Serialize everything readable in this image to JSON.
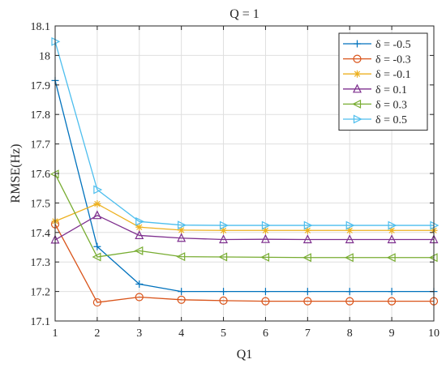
{
  "chart_data": {
    "type": "line",
    "title": "Q = 1",
    "xlabel": "Q1",
    "ylabel": "RMSE(Hz)",
    "x": [
      1,
      2,
      3,
      4,
      5,
      6,
      7,
      8,
      9,
      10
    ],
    "xlim": [
      1,
      10
    ],
    "ylim": [
      17.1,
      18.1
    ],
    "xticks": [
      "1",
      "2",
      "3",
      "4",
      "5",
      "6",
      "7",
      "8",
      "9",
      "10"
    ],
    "yticks": [
      "17.1",
      "17.2",
      "17.3",
      "17.4",
      "17.5",
      "17.6",
      "17.7",
      "17.8",
      "17.9",
      "18",
      "18.1"
    ],
    "grid": true,
    "legend_position": "top-right",
    "series": [
      {
        "name": "δ = -0.5",
        "marker": "plus",
        "color": "#0072BD",
        "values": [
          17.915,
          17.352,
          17.225,
          17.2,
          17.2,
          17.2,
          17.2,
          17.2,
          17.2,
          17.2
        ]
      },
      {
        "name": "δ = -0.3",
        "marker": "circle",
        "color": "#D95319",
        "values": [
          17.428,
          17.163,
          17.181,
          17.172,
          17.169,
          17.167,
          17.167,
          17.167,
          17.167,
          17.167
        ]
      },
      {
        "name": "δ = -0.1",
        "marker": "asterisk",
        "color": "#EDB120",
        "values": [
          17.438,
          17.497,
          17.418,
          17.408,
          17.407,
          17.407,
          17.407,
          17.407,
          17.407,
          17.407
        ]
      },
      {
        "name": "δ = 0.1",
        "marker": "triangle-up",
        "color": "#7E2F8E",
        "values": [
          17.375,
          17.458,
          17.39,
          17.381,
          17.376,
          17.377,
          17.376,
          17.376,
          17.376,
          17.376
        ]
      },
      {
        "name": "δ = 0.3",
        "marker": "triangle-left",
        "color": "#77AC30",
        "values": [
          17.598,
          17.317,
          17.338,
          17.318,
          17.317,
          17.316,
          17.315,
          17.315,
          17.315,
          17.315
        ]
      },
      {
        "name": "δ = 0.5",
        "marker": "triangle-right",
        "color": "#4DBEEE",
        "values": [
          18.047,
          17.545,
          17.437,
          17.425,
          17.424,
          17.424,
          17.424,
          17.424,
          17.424,
          17.424
        ]
      }
    ]
  }
}
